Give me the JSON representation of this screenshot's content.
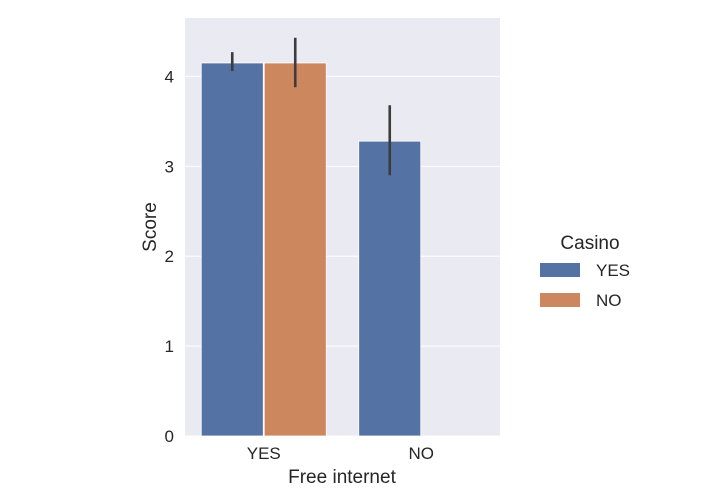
{
  "chart_data": {
    "type": "bar",
    "xlabel": "Free internet",
    "ylabel": "Score",
    "categories": [
      "YES",
      "NO"
    ],
    "ylim": [
      0,
      4.65
    ],
    "yticks": [
      0,
      1,
      2,
      3,
      4
    ],
    "grid": true,
    "legend": {
      "title": "Casino",
      "placement": "right"
    },
    "series": [
      {
        "name": "YES",
        "color": "#5572a4",
        "values": [
          4.15,
          3.28
        ],
        "err_low": [
          4.06,
          2.9
        ],
        "err_high": [
          4.27,
          3.68
        ]
      },
      {
        "name": "NO",
        "color": "#cd875f",
        "values": [
          4.15,
          null
        ],
        "err_low": [
          3.88,
          null
        ],
        "err_high": [
          4.43,
          null
        ]
      }
    ]
  }
}
